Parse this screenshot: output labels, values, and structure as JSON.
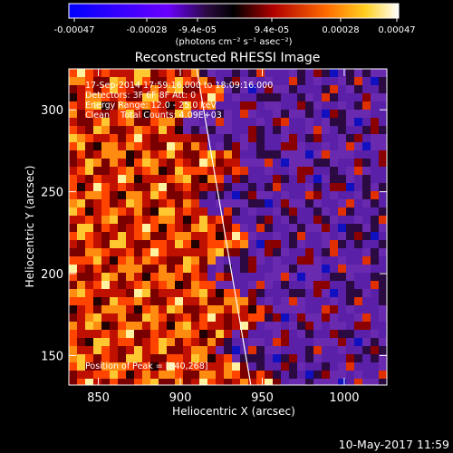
{
  "colorbar": {
    "tick_labels": [
      "-0.00047",
      "-0.00028",
      "-9.4e-05",
      "9.4e-05",
      "0.00028",
      "0.00047"
    ],
    "units": "(photons cm⁻² s⁻¹ asec⁻²)",
    "range": [
      -0.00047,
      0.00047
    ]
  },
  "chart_data": {
    "type": "heatmap",
    "title": "Reconstructed RHESSI Image",
    "xlabel": "Heliocentric X (arcsec)",
    "ylabel": "Heliocentric Y (arcsec)",
    "xlim": [
      832,
      1026
    ],
    "ylim": [
      132,
      325
    ],
    "xticks": [
      850,
      900,
      950,
      1000
    ],
    "yticks": [
      150,
      200,
      250,
      300
    ],
    "x_tick_labels": [
      "850",
      "900",
      "950",
      "1000"
    ],
    "y_tick_labels": [
      "150",
      "200",
      "250",
      "300"
    ],
    "limb_line": [
      [
        910,
        325
      ],
      [
        943,
        132
      ]
    ],
    "annotations": [
      "17-Sep-2014 17:59:16.000 to 18:09:16.000",
      "Detectors: 3F 6F 8F Att: 0",
      "Energy Range: 12.0 - 25.0 keV",
      "Clean    Total Counts: 4.09E+03"
    ],
    "peak_label": "Position of Peak = [840,268]",
    "peak_position": [
      840,
      268
    ]
  },
  "footer": {
    "timestamp": "10-May-2017 11:59"
  }
}
